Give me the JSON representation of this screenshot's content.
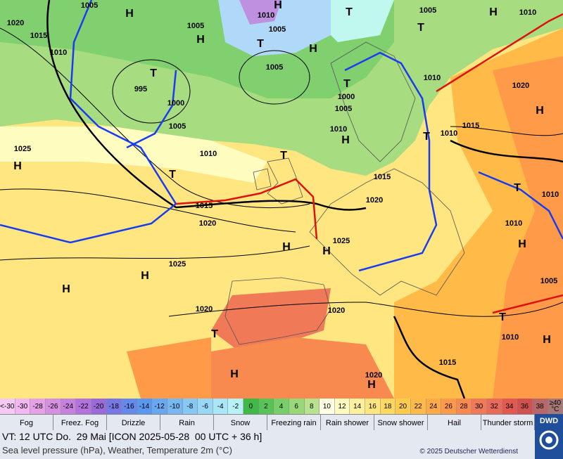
{
  "map": {
    "pressure_labels": [
      1005,
      1020,
      1015,
      1010,
      995,
      1000,
      1005,
      1025,
      1010,
      1015,
      1020,
      1025,
      1020,
      1010,
      1005,
      1005,
      1005,
      1000,
      1005,
      1010,
      1015,
      1020,
      1025,
      1020,
      1020,
      1015,
      1010,
      1005,
      1010,
      1010,
      1015,
      1010,
      1010,
      1020,
      1005,
      1010
    ],
    "pressure_systems": [
      "H",
      "H",
      "H",
      "H",
      "T",
      "T",
      "T",
      "T",
      "H",
      "H",
      "H",
      "T",
      "T",
      "T",
      "H",
      "H",
      "H",
      "H",
      "H",
      "T",
      "H",
      "H",
      "H",
      "T",
      "H",
      "T",
      "T"
    ]
  },
  "temperature_scale": {
    "below": "<-30",
    "above": "≥40 °C",
    "cells": [
      -30,
      -28,
      -26,
      -24,
      -22,
      -20,
      -18,
      -16,
      -14,
      -12,
      -10,
      -8,
      -6,
      -4,
      -2,
      0,
      2,
      4,
      6,
      8,
      10,
      12,
      14,
      16,
      18,
      20,
      22,
      24,
      26,
      28,
      30,
      32,
      34,
      36,
      38
    ],
    "colors": [
      "#f2b6f0",
      "#e4a2e6",
      "#d690e2",
      "#c680de",
      "#b472dc",
      "#9a6ad8",
      "#7878e4",
      "#6488ec",
      "#5898f0",
      "#68a8f0",
      "#78b8f2",
      "#88c8f4",
      "#98d8f6",
      "#a8e6f8",
      "#b8f2f6",
      "#40b848",
      "#58c458",
      "#78ce68",
      "#98d878",
      "#b8e290",
      "#ffffe4",
      "#fffac0",
      "#fff0a0",
      "#ffe680",
      "#ffd860",
      "#ffca50",
      "#ffba48",
      "#ffaa48",
      "#ff9a48",
      "#f88a50",
      "#f07a58",
      "#e86a58",
      "#e05a52",
      "#d05250",
      "#b86868"
    ],
    "below_color": "#f6c8f4",
    "above_color": "#a87878"
  },
  "legend": [
    "Fog",
    "Freez. Fog",
    "Drizzle",
    "Rain",
    "Snow",
    "Freezing rain",
    "Rain shower",
    "Snow shower",
    "Hail",
    "Thunder storm"
  ],
  "footer": {
    "valid_time": "VT: 12 UTC Do.  29 Mai [ICON 2025-05-28  00 UTC + 36 h]",
    "description": "Sea level pressure (hPa), Weather, Temperature 2m (°C)",
    "copyright": "© 2025 Deutscher Wetterdienst",
    "logo": "DWD"
  }
}
